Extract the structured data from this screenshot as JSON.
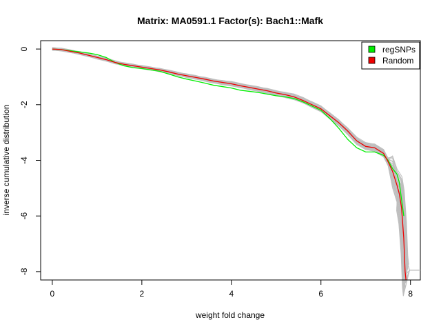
{
  "chart_data": {
    "type": "line",
    "title": "Matrix: MA0591.1 Factor(s): Bach1::Mafk",
    "xlabel": "weight fold change",
    "ylabel": "inverse cumulative distribution",
    "xlim": [
      -0.26,
      8.22
    ],
    "ylim": [
      -8.3,
      0.3
    ],
    "xticks": [
      0,
      2,
      4,
      6,
      8
    ],
    "yticks": [
      0,
      -2,
      -4,
      -6,
      -8
    ],
    "xtick_labels": [
      "0",
      "2",
      "4",
      "6",
      "8"
    ],
    "ytick_labels": [
      "0",
      "-2",
      "-4",
      "-6",
      "-8"
    ],
    "legend_position": "top-right",
    "grid": false,
    "colors": {
      "regSNPs": "#00ee00",
      "Random": "#ee0000",
      "random_trials": "#bebebe"
    },
    "series": [
      {
        "name": "regSNPs",
        "color": "#00ee00",
        "x": [
          0,
          0.2,
          0.4,
          0.6,
          0.8,
          1.0,
          1.2,
          1.4,
          1.6,
          1.8,
          2.0,
          2.2,
          2.4,
          2.6,
          2.8,
          3.0,
          3.2,
          3.4,
          3.6,
          3.8,
          4.0,
          4.2,
          4.4,
          4.6,
          4.8,
          5.0,
          5.2,
          5.4,
          5.6,
          5.8,
          6.0,
          6.2,
          6.4,
          6.6,
          6.8,
          7.0,
          7.2,
          7.4,
          7.5,
          7.6,
          7.7,
          7.75,
          7.8,
          7.85
        ],
        "y": [
          0,
          -0.02,
          -0.06,
          -0.1,
          -0.14,
          -0.2,
          -0.3,
          -0.48,
          -0.6,
          -0.67,
          -0.7,
          -0.75,
          -0.8,
          -0.9,
          -1.0,
          -1.08,
          -1.15,
          -1.22,
          -1.3,
          -1.35,
          -1.4,
          -1.48,
          -1.52,
          -1.56,
          -1.62,
          -1.68,
          -1.72,
          -1.78,
          -1.9,
          -2.05,
          -2.2,
          -2.5,
          -2.85,
          -3.25,
          -3.55,
          -3.7,
          -3.7,
          -3.82,
          -4.0,
          -4.3,
          -4.5,
          -4.8,
          -5.4,
          -6.0
        ]
      },
      {
        "name": "Random",
        "color": "#ee0000",
        "x": [
          0,
          0.2,
          0.4,
          0.6,
          0.8,
          1.0,
          1.2,
          1.4,
          1.6,
          1.8,
          2.0,
          2.2,
          2.4,
          2.6,
          2.8,
          3.0,
          3.2,
          3.4,
          3.6,
          3.8,
          4.0,
          4.2,
          4.4,
          4.6,
          4.8,
          5.0,
          5.2,
          5.4,
          5.6,
          5.8,
          6.0,
          6.2,
          6.4,
          6.6,
          6.8,
          7.0,
          7.2,
          7.4,
          7.5,
          7.6,
          7.7,
          7.75,
          7.8,
          7.85,
          7.88,
          7.9
        ],
        "y": [
          0,
          -0.02,
          -0.08,
          -0.14,
          -0.22,
          -0.3,
          -0.38,
          -0.48,
          -0.55,
          -0.6,
          -0.65,
          -0.7,
          -0.75,
          -0.82,
          -0.9,
          -0.96,
          -1.02,
          -1.08,
          -1.15,
          -1.2,
          -1.25,
          -1.32,
          -1.38,
          -1.44,
          -1.5,
          -1.58,
          -1.64,
          -1.72,
          -1.85,
          -2.0,
          -2.15,
          -2.4,
          -2.65,
          -2.95,
          -3.3,
          -3.5,
          -3.55,
          -3.75,
          -4.05,
          -4.4,
          -4.9,
          -5.2,
          -5.7,
          -6.8,
          -8.0,
          -8.3
        ]
      }
    ]
  }
}
